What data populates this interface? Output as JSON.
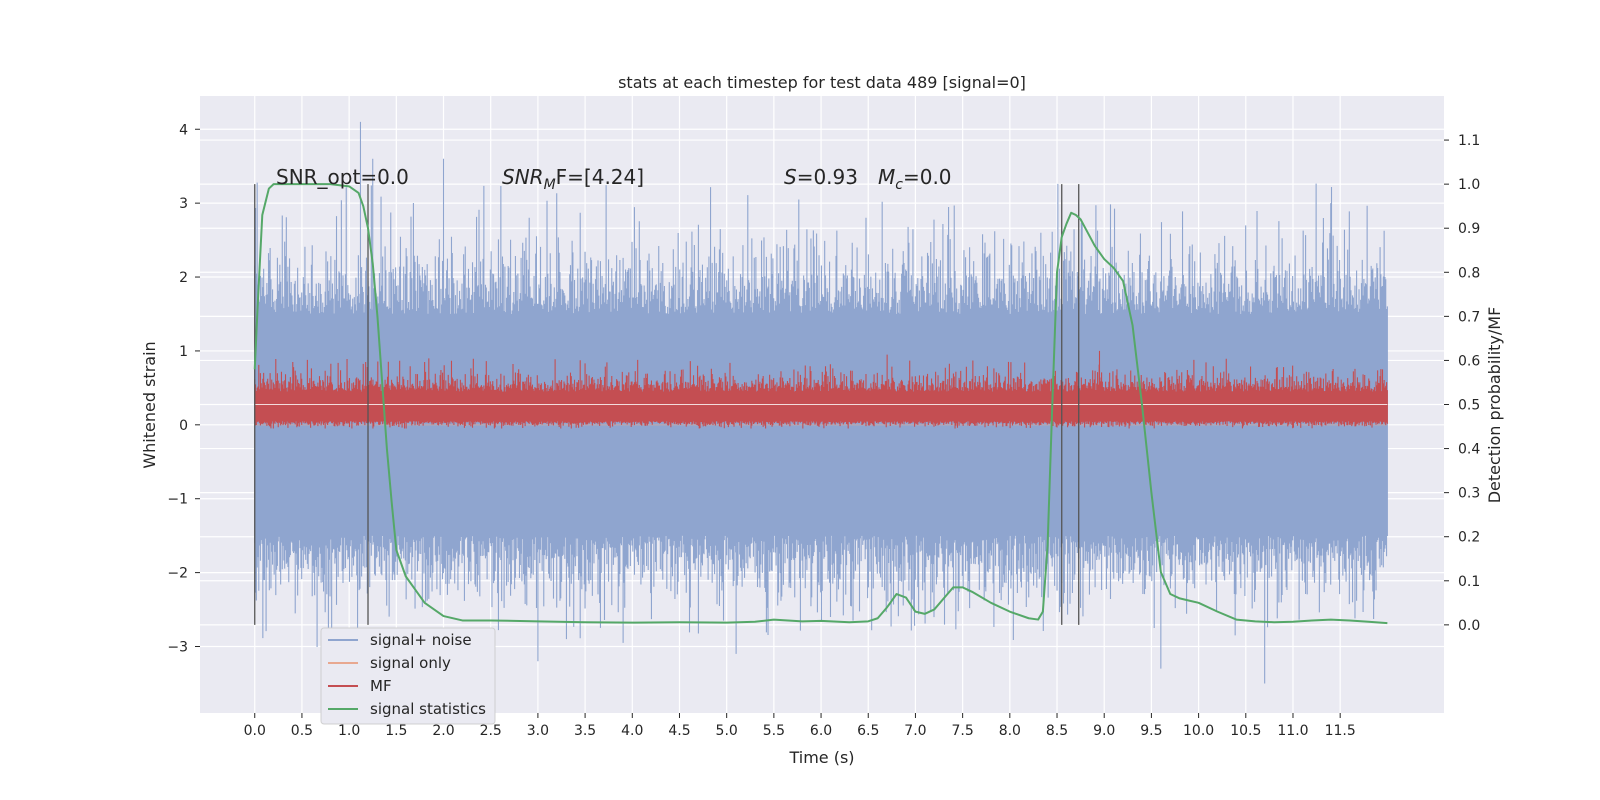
{
  "chart_data": {
    "type": "line",
    "title": "stats at each timestep for test data 489 [signal=0]",
    "xlabel": "Time (s)",
    "ylabel": "Whitened strain",
    "ylabel_right": "Detection probability/MF",
    "xlim": [
      -0.58,
      12.6
    ],
    "ylim": [
      -3.9,
      4.45
    ],
    "ylim_right": [
      -0.2,
      1.2
    ],
    "x_ticks": [
      "0.0",
      "0.5",
      "1.0",
      "1.5",
      "2.0",
      "2.5",
      "3.0",
      "3.5",
      "4.0",
      "4.5",
      "5.0",
      "5.5",
      "6.0",
      "6.5",
      "7.0",
      "7.5",
      "8.0",
      "8.5",
      "9.0",
      "9.5",
      "10.0",
      "10.5",
      "11.0",
      "11.5"
    ],
    "y_ticks": [
      4,
      3,
      2,
      1,
      0,
      -1,
      -2,
      -3
    ],
    "y_tick_labels": [
      "4",
      "3",
      "2",
      "1",
      "0",
      "−1",
      "−2",
      "−3"
    ],
    "y_right_ticks": [
      1.1,
      1.0,
      0.9,
      0.8,
      0.7,
      0.6,
      0.5,
      0.4,
      0.3,
      0.2,
      0.1,
      0.0
    ],
    "y_right_tick_labels": [
      "1.1",
      "1.0",
      "0.9",
      "0.8",
      "0.7",
      "0.6",
      "0.5",
      "0.4",
      "0.3",
      "0.2",
      "0.1",
      "0.0"
    ],
    "grid": true,
    "legend_position": "lower-left",
    "annotations": {
      "snr_opt": "SNR_opt=0.0",
      "snr_mf_main": "SNR",
      "snr_mf_sub": "M",
      "snr_mf_rest": "F=[4.24]",
      "s_main": "S",
      "s_rest": "=0.93",
      "mc_main": "M",
      "mc_sub": "c",
      "mc_rest": "=0.0"
    },
    "vertical_markers": [
      0.0,
      1.2,
      8.55,
      8.73
    ],
    "series": [
      {
        "name": "signal+ noise",
        "color": "#8fa5cf",
        "band_strain": [
          -1.5,
          1.5
        ],
        "spike_range_strain": [
          -3.5,
          4.1
        ],
        "x_range": [
          0.0,
          12.0
        ]
      },
      {
        "name": "signal only",
        "color": "#e8a890",
        "values_strain": 0.0
      },
      {
        "name": "MF",
        "color": "#c44e52",
        "band_strain": [
          0.0,
          0.6
        ],
        "peak_range_strain": [
          -0.05,
          1.0
        ],
        "x_range": [
          0.0,
          12.0
        ]
      },
      {
        "name": "signal statistics",
        "color": "#55a868",
        "axis": "right",
        "x": [
          0.0,
          0.03,
          0.08,
          0.15,
          0.2,
          0.3,
          0.5,
          0.8,
          1.0,
          1.1,
          1.15,
          1.2,
          1.25,
          1.3,
          1.35,
          1.4,
          1.45,
          1.5,
          1.6,
          1.7,
          1.8,
          2.0,
          2.2,
          2.5,
          3.0,
          3.5,
          4.0,
          4.5,
          5.0,
          5.3,
          5.5,
          5.8,
          6.0,
          6.3,
          6.5,
          6.6,
          6.7,
          6.8,
          6.9,
          7.0,
          7.1,
          7.2,
          7.3,
          7.4,
          7.5,
          7.6,
          7.8,
          8.0,
          8.2,
          8.3,
          8.35,
          8.4,
          8.45,
          8.5,
          8.55,
          8.6,
          8.65,
          8.7,
          8.75,
          8.8,
          8.9,
          9.0,
          9.1,
          9.2,
          9.3,
          9.4,
          9.5,
          9.6,
          9.7,
          9.8,
          9.9,
          10.0,
          10.2,
          10.4,
          10.6,
          10.8,
          11.0,
          11.2,
          11.4,
          11.6,
          11.8,
          12.0
        ],
        "y": [
          0.58,
          0.72,
          0.93,
          0.99,
          1.0,
          1.0,
          1.0,
          1.0,
          0.995,
          0.98,
          0.95,
          0.9,
          0.82,
          0.7,
          0.55,
          0.4,
          0.28,
          0.17,
          0.11,
          0.08,
          0.05,
          0.02,
          0.01,
          0.01,
          0.008,
          0.006,
          0.005,
          0.006,
          0.005,
          0.007,
          0.012,
          0.008,
          0.009,
          0.006,
          0.008,
          0.015,
          0.04,
          0.07,
          0.062,
          0.03,
          0.025,
          0.035,
          0.06,
          0.085,
          0.085,
          0.075,
          0.05,
          0.03,
          0.015,
          0.012,
          0.03,
          0.18,
          0.5,
          0.8,
          0.88,
          0.91,
          0.935,
          0.93,
          0.92,
          0.9,
          0.86,
          0.83,
          0.81,
          0.78,
          0.68,
          0.5,
          0.3,
          0.12,
          0.07,
          0.06,
          0.055,
          0.05,
          0.03,
          0.012,
          0.008,
          0.006,
          0.007,
          0.01,
          0.012,
          0.01,
          0.007,
          0.004
        ]
      }
    ]
  }
}
